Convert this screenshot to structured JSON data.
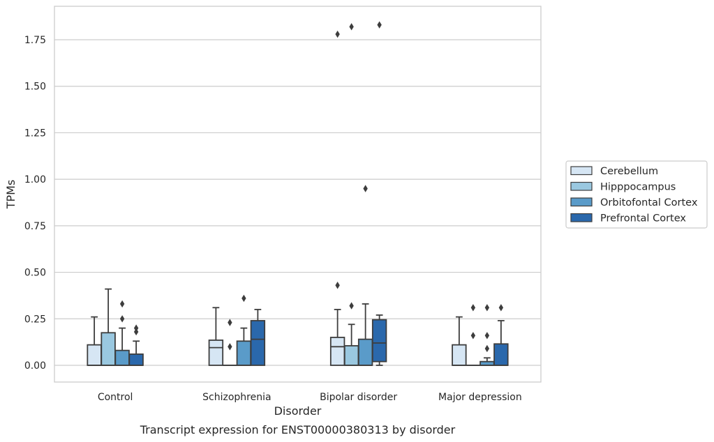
{
  "chart_data": {
    "type": "box",
    "title": "Transcript expression for ENST00000380313 by disorder",
    "xlabel": "Disorder",
    "ylabel": "TPMs",
    "ylim": [
      -0.09,
      1.93
    ],
    "yticks": [
      0.0,
      0.25,
      0.5,
      0.75,
      1.0,
      1.25,
      1.5,
      1.75
    ],
    "ytick_labels": [
      "0.00",
      "0.25",
      "0.50",
      "0.75",
      "1.00",
      "1.25",
      "1.50",
      "1.75"
    ],
    "grid": "horizontal",
    "legend_position": "right",
    "categories": [
      "Control",
      "Schizophrenia",
      "Bipolar disorder",
      "Major depression"
    ],
    "series": [
      {
        "name": "Cerebellum",
        "color": "#d6e6f4",
        "boxes": [
          {
            "whislo": 0.0,
            "q1": 0.0,
            "med": 0.0,
            "q3": 0.11,
            "whishi": 0.26,
            "fliers": []
          },
          {
            "whislo": 0.0,
            "q1": 0.0,
            "med": 0.095,
            "q3": 0.135,
            "whishi": 0.31,
            "fliers": []
          },
          {
            "whislo": 0.0,
            "q1": 0.0,
            "med": 0.1,
            "q3": 0.15,
            "whishi": 0.3,
            "fliers": [
              0.43,
              1.78
            ]
          },
          {
            "whislo": 0.0,
            "q1": 0.0,
            "med": 0.0,
            "q3": 0.11,
            "whishi": 0.26,
            "fliers": []
          }
        ]
      },
      {
        "name": "Hipppocampus",
        "color": "#9ac8e0",
        "boxes": [
          {
            "whislo": 0.0,
            "q1": 0.0,
            "med": 0.0,
            "q3": 0.175,
            "whishi": 0.41,
            "fliers": []
          },
          {
            "whislo": 0.0,
            "q1": 0.0,
            "med": 0.0,
            "q3": 0.0,
            "whishi": 0.0,
            "fliers": [
              0.1,
              0.23
            ]
          },
          {
            "whislo": 0.0,
            "q1": 0.0,
            "med": 0.0,
            "q3": 0.105,
            "whishi": 0.22,
            "fliers": [
              0.32,
              1.82
            ]
          },
          {
            "whislo": 0.0,
            "q1": 0.0,
            "med": 0.0,
            "q3": 0.0,
            "whishi": 0.0,
            "fliers": [
              0.16,
              0.31
            ]
          }
        ]
      },
      {
        "name": "Orbitofontal Cortex",
        "color": "#5a9bc9",
        "boxes": [
          {
            "whislo": 0.0,
            "q1": 0.0,
            "med": 0.0,
            "q3": 0.08,
            "whishi": 0.2,
            "fliers": [
              0.25,
              0.33
            ]
          },
          {
            "whislo": 0.0,
            "q1": 0.0,
            "med": 0.0,
            "q3": 0.13,
            "whishi": 0.2,
            "fliers": [
              0.36
            ]
          },
          {
            "whislo": 0.0,
            "q1": 0.0,
            "med": 0.0,
            "q3": 0.14,
            "whishi": 0.33,
            "fliers": [
              0.95
            ]
          },
          {
            "whislo": 0.0,
            "q1": 0.0,
            "med": 0.0,
            "q3": 0.02,
            "whishi": 0.04,
            "fliers": [
              0.09,
              0.16,
              0.31
            ]
          }
        ]
      },
      {
        "name": "Prefrontal Cortex",
        "color": "#2a68ac",
        "boxes": [
          {
            "whislo": 0.0,
            "q1": 0.0,
            "med": 0.0,
            "q3": 0.06,
            "whishi": 0.13,
            "fliers": [
              0.18,
              0.2
            ]
          },
          {
            "whislo": 0.0,
            "q1": 0.0,
            "med": 0.14,
            "q3": 0.24,
            "whishi": 0.3,
            "fliers": []
          },
          {
            "whislo": 0.0,
            "q1": 0.02,
            "med": 0.12,
            "q3": 0.245,
            "whishi": 0.27,
            "fliers": [
              1.83
            ]
          },
          {
            "whislo": 0.0,
            "q1": 0.0,
            "med": 0.0,
            "q3": 0.115,
            "whishi": 0.24,
            "fliers": [
              0.31
            ]
          }
        ]
      }
    ]
  }
}
